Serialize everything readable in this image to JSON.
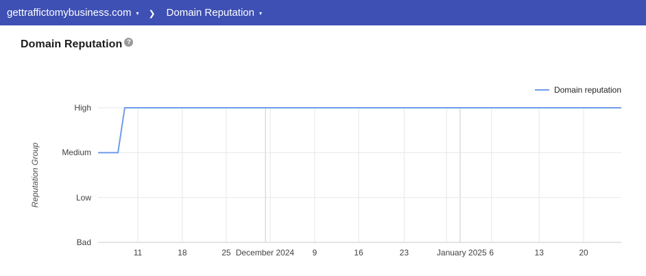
{
  "header": {
    "bg_color": "#3e50b4",
    "domain_selector": {
      "label": "gettraffictomybusiness.com",
      "caret_icon": "▾"
    },
    "separator_icon": "❯",
    "report_selector": {
      "label": "Domain Reputation",
      "caret_icon": "▾"
    }
  },
  "page": {
    "title": "Domain Reputation",
    "help_icon_glyph": "?"
  },
  "chart_data": {
    "type": "line",
    "title": "Domain Reputation",
    "xlabel": "",
    "ylabel": "Reputation Group",
    "y_categories": [
      "Bad",
      "Low",
      "Medium",
      "High"
    ],
    "x_ticks": [
      {
        "label": "11",
        "pos": 0.076
      },
      {
        "label": "18",
        "pos": 0.161
      },
      {
        "label": "25",
        "pos": 0.245
      },
      {
        "label": "December 2024",
        "pos": 0.319
      },
      {
        "label": "9",
        "pos": 0.414
      },
      {
        "label": "16",
        "pos": 0.498
      },
      {
        "label": "23",
        "pos": 0.585
      },
      {
        "label": "January 2025",
        "pos": 0.695
      },
      {
        "label": "6",
        "pos": 0.752
      },
      {
        "label": "13",
        "pos": 0.843
      },
      {
        "label": "20",
        "pos": 0.928
      }
    ],
    "v_gridlines": [
      0.076,
      0.161,
      0.245,
      0.329,
      0.414,
      0.498,
      0.585,
      0.666,
      0.752,
      0.843,
      0.928
    ],
    "month_gridlines": [
      0.32,
      0.692
    ],
    "grid": true,
    "legend": {
      "position": "top-right",
      "entries": [
        {
          "label": "Domain reputation",
          "color": "#6d9be9"
        }
      ]
    },
    "series": [
      {
        "name": "Domain reputation",
        "color": "#6d9be9",
        "points": [
          {
            "x": 0.0,
            "y": "Medium"
          },
          {
            "x": 0.038,
            "y": "Medium"
          },
          {
            "x": 0.051,
            "y": "High"
          },
          {
            "x": 1.0,
            "y": "High"
          }
        ]
      }
    ],
    "colors": {
      "gridline": "#e7e7e7",
      "month_gridline": "#c9c9c9",
      "axis_line": "#c9c9c9",
      "tick_label": "#404040",
      "axis_title": "#4d4d4d"
    }
  }
}
